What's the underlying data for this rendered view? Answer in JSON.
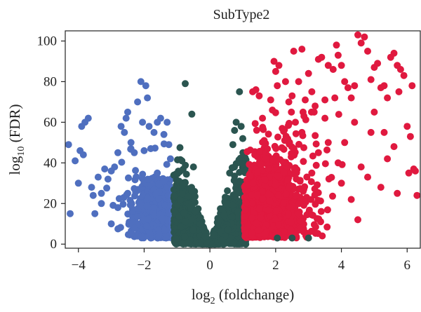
{
  "chart_data": {
    "type": "scatter",
    "title": "SubType2",
    "xlabel": {
      "prefix": "log",
      "subscript": "2",
      "text": " (foldchange)"
    },
    "ylabel": {
      "prefix": "log",
      "subscript": "10",
      "text": " (FDR)"
    },
    "xlim": [
      -4.4,
      6.4
    ],
    "ylim": [
      -2,
      105
    ],
    "x_ticks": [
      -4,
      -2,
      0,
      2,
      4,
      6
    ],
    "x_tick_labels": [
      "−4",
      "−2",
      "0",
      "2",
      "4",
      "6"
    ],
    "y_ticks": [
      0,
      20,
      40,
      60,
      80,
      100
    ],
    "y_tick_labels": [
      "0",
      "20",
      "40",
      "60",
      "80",
      "100"
    ],
    "grid": false,
    "legend": "none",
    "colors": {
      "down": "#4f6fbf",
      "neutral": "#2b5550",
      "up": "#e0193f"
    },
    "series": [
      {
        "key": "down",
        "color": "#4f6fbf",
        "points": [
          [
            -4.3,
            49
          ],
          [
            -4.25,
            15
          ],
          [
            -4.1,
            41
          ],
          [
            -4.0,
            30
          ],
          [
            -3.9,
            58
          ],
          [
            -3.8,
            60
          ],
          [
            -3.7,
            62
          ],
          [
            -3.95,
            46
          ],
          [
            -3.85,
            44
          ],
          [
            -3.6,
            28
          ],
          [
            -3.55,
            24
          ],
          [
            -3.4,
            33
          ],
          [
            -3.3,
            25
          ],
          [
            -3.2,
            37
          ],
          [
            -3.1,
            32
          ],
          [
            -3.0,
            36
          ],
          [
            -2.9,
            38
          ],
          [
            -2.8,
            45
          ],
          [
            -2.7,
            58
          ],
          [
            -2.6,
            55
          ],
          [
            -2.55,
            62
          ],
          [
            -2.5,
            65
          ],
          [
            -2.4,
            50
          ],
          [
            -2.3,
            45
          ],
          [
            -2.2,
            70
          ],
          [
            -2.1,
            80
          ],
          [
            -2.05,
            60
          ],
          [
            -1.95,
            78
          ],
          [
            -1.9,
            72
          ],
          [
            -1.85,
            58
          ],
          [
            -1.8,
            47
          ],
          [
            -1.7,
            55
          ],
          [
            -1.6,
            60
          ],
          [
            -1.5,
            62
          ],
          [
            -1.4,
            54
          ],
          [
            -1.3,
            60
          ],
          [
            -1.25,
            49
          ],
          [
            -1.2,
            42
          ],
          [
            -2.0,
            46
          ],
          [
            -2.5,
            25
          ],
          [
            -3.0,
            10
          ],
          [
            -3.5,
            15
          ],
          [
            -2.3,
            8
          ],
          [
            -1.6,
            35
          ],
          [
            -2.8,
            18
          ],
          [
            -3.3,
            20
          ]
        ]
      },
      {
        "key": "neutral",
        "color": "#2b5550",
        "points": [
          [
            -0.75,
            79
          ],
          [
            -0.55,
            64
          ],
          [
            -0.85,
            41
          ],
          [
            -0.5,
            38
          ],
          [
            -0.3,
            10
          ],
          [
            0.35,
            2
          ],
          [
            0.5,
            20
          ],
          [
            0.6,
            35
          ],
          [
            0.7,
            49
          ],
          [
            0.75,
            56
          ],
          [
            0.8,
            60
          ],
          [
            0.9,
            75
          ],
          [
            0.95,
            58
          ],
          [
            1.0,
            52
          ],
          [
            2.05,
            3
          ],
          [
            2.5,
            3
          ],
          [
            3.0,
            3
          ]
        ]
      },
      {
        "key": "up",
        "color": "#e0193f",
        "points": [
          [
            1.3,
            75
          ],
          [
            1.4,
            76
          ],
          [
            1.5,
            73
          ],
          [
            1.6,
            62
          ],
          [
            1.65,
            51
          ],
          [
            1.7,
            42
          ],
          [
            1.85,
            71
          ],
          [
            1.9,
            66
          ],
          [
            1.95,
            90
          ],
          [
            2.0,
            85
          ],
          [
            2.05,
            78
          ],
          [
            2.1,
            88
          ],
          [
            2.3,
            80
          ],
          [
            2.4,
            70
          ],
          [
            2.5,
            73
          ],
          [
            2.55,
            95
          ],
          [
            2.7,
            80
          ],
          [
            2.8,
            96
          ],
          [
            2.9,
            71
          ],
          [
            3.0,
            84
          ],
          [
            3.1,
            75
          ],
          [
            3.2,
            68
          ],
          [
            3.3,
            91
          ],
          [
            3.4,
            92
          ],
          [
            3.5,
            71
          ],
          [
            3.6,
            88
          ],
          [
            3.75,
            86
          ],
          [
            3.8,
            72
          ],
          [
            3.85,
            98
          ],
          [
            3.9,
            93
          ],
          [
            4.0,
            88
          ],
          [
            4.1,
            80
          ],
          [
            4.2,
            77
          ],
          [
            4.3,
            72
          ],
          [
            4.4,
            78
          ],
          [
            4.5,
            103
          ],
          [
            4.6,
            99
          ],
          [
            4.7,
            102
          ],
          [
            4.8,
            95
          ],
          [
            4.9,
            81
          ],
          [
            5.0,
            87
          ],
          [
            5.1,
            89
          ],
          [
            5.2,
            77
          ],
          [
            5.3,
            78
          ],
          [
            5.4,
            72
          ],
          [
            5.5,
            92
          ],
          [
            5.6,
            94
          ],
          [
            5.7,
            88
          ],
          [
            5.8,
            86
          ],
          [
            5.9,
            83
          ],
          [
            6.0,
            58
          ],
          [
            6.1,
            53
          ],
          [
            6.15,
            78
          ],
          [
            6.2,
            37
          ],
          [
            6.25,
            36
          ],
          [
            6.3,
            24
          ],
          [
            5.75,
            75
          ],
          [
            5.0,
            65
          ],
          [
            4.4,
            60
          ],
          [
            3.6,
            50
          ],
          [
            2.6,
            60
          ],
          [
            4.6,
            38
          ],
          [
            5.4,
            42
          ],
          [
            5.2,
            28
          ],
          [
            4.1,
            50
          ],
          [
            3.3,
            45
          ],
          [
            2.8,
            55
          ],
          [
            4.8,
            33
          ],
          [
            5.6,
            48
          ],
          [
            6.05,
            35
          ],
          [
            3.9,
            40
          ],
          [
            4.3,
            22
          ],
          [
            5.7,
            25
          ],
          [
            4.9,
            55
          ],
          [
            3.5,
            62
          ],
          [
            2.2,
            57
          ],
          [
            3.1,
            35
          ],
          [
            4.5,
            12
          ],
          [
            5.3,
            55
          ],
          [
            4.0,
            30
          ]
        ]
      }
    ],
    "dense_bands": [
      {
        "key": "down",
        "x_min": -3.2,
        "x_max": -1.05,
        "x_center": -1.4,
        "x_spread": 0.6,
        "y_min": 3,
        "y_max": 50,
        "y_scale": 16,
        "count": 900
      },
      {
        "key": "neutral",
        "x_min": -1.1,
        "x_max": 1.1,
        "x_center": 0,
        "x_spread": 1.0,
        "y_min": 0,
        "y_max": 55,
        "y_scale": 58,
        "count": 1300
      },
      {
        "key": "up",
        "x_min": 1.05,
        "x_max": 4.8,
        "x_center": 1.4,
        "x_spread": 0.9,
        "y_min": 3,
        "y_max": 65,
        "y_scale": 22,
        "count": 1200
      }
    ]
  }
}
